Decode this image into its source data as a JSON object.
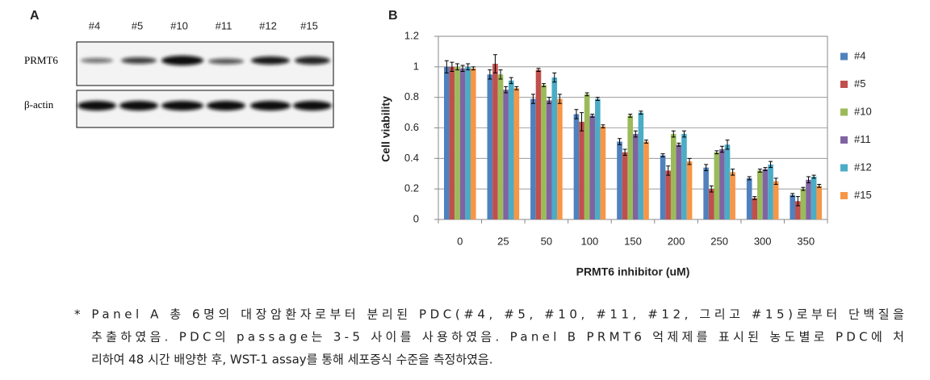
{
  "panel_a": {
    "label": "A",
    "lanes": [
      "#4",
      "#5",
      "#10",
      "#11",
      "#12",
      "#15"
    ],
    "rows": [
      "PRMT6",
      "β-actin"
    ]
  },
  "panel_b": {
    "label": "B"
  },
  "chart_data": {
    "type": "bar",
    "x_label": "PRMT6 inhibitor (uM)",
    "y_label": "Cell viability",
    "categories": [
      "0",
      "25",
      "50",
      "100",
      "150",
      "200",
      "250",
      "300",
      "350"
    ],
    "ylim": [
      0,
      1.2
    ],
    "yticks": [
      0,
      0.2,
      0.4,
      0.6,
      0.8,
      1,
      1.2
    ],
    "grid": true,
    "legend": "right",
    "series": [
      {
        "name": "#4",
        "color": "#4f81bd",
        "values": [
          1.0,
          0.95,
          0.79,
          0.69,
          0.51,
          0.42,
          0.34,
          0.27,
          0.16
        ],
        "errors": [
          0.04,
          0.03,
          0.03,
          0.03,
          0.02,
          0.01,
          0.02,
          0.01,
          0.01
        ]
      },
      {
        "name": "#5",
        "color": "#c0504d",
        "values": [
          1.0,
          1.02,
          0.98,
          0.64,
          0.44,
          0.32,
          0.2,
          0.14,
          0.12
        ],
        "errors": [
          0.03,
          0.06,
          0.01,
          0.06,
          0.02,
          0.03,
          0.02,
          0.01,
          0.03
        ]
      },
      {
        "name": "#10",
        "color": "#9bbb59",
        "values": [
          1.0,
          0.95,
          0.88,
          0.82,
          0.68,
          0.56,
          0.44,
          0.32,
          0.2
        ],
        "errors": [
          0.02,
          0.03,
          0.01,
          0.01,
          0.01,
          0.02,
          0.01,
          0.01,
          0.01
        ]
      },
      {
        "name": "#11",
        "color": "#8064a2",
        "values": [
          0.99,
          0.85,
          0.78,
          0.68,
          0.56,
          0.49,
          0.46,
          0.33,
          0.26
        ],
        "errors": [
          0.02,
          0.02,
          0.02,
          0.01,
          0.02,
          0.01,
          0.02,
          0.01,
          0.02
        ]
      },
      {
        "name": "#12",
        "color": "#4bacc6",
        "values": [
          1.0,
          0.91,
          0.93,
          0.79,
          0.7,
          0.56,
          0.49,
          0.36,
          0.28
        ],
        "errors": [
          0.02,
          0.02,
          0.03,
          0.01,
          0.01,
          0.02,
          0.03,
          0.02,
          0.01
        ]
      },
      {
        "name": "#15",
        "color": "#f79646",
        "values": [
          0.99,
          0.86,
          0.79,
          0.61,
          0.51,
          0.38,
          0.31,
          0.25,
          0.22
        ],
        "errors": [
          0.01,
          0.01,
          0.03,
          0.01,
          0.01,
          0.02,
          0.02,
          0.02,
          0.01
        ]
      }
    ]
  },
  "caption": {
    "lines": [
      "* Panel A 총 6명의 대장암환자로부터 분리된 PDC(#4, #5, #10, #11, #12, 그리고 #15)로부터 단백질을",
      "추출하였음. PDC의 passage는 3-5 사이를 사용하였음. Panel B PRMT6 억제제를 표시된 농도별로 PDC에 처",
      "리하여 48 시간 배양한 후, WST-1 assay를 통해 세포증식 수준을 측정하였음."
    ]
  }
}
